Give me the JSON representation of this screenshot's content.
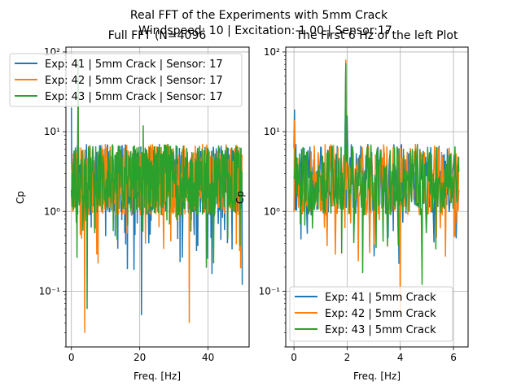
{
  "figure": {
    "suptitle_line1": "Real FFT of the Experiments with 5mm Crack",
    "suptitle_line2": "Windspeed: 10 | Excitation: 1.00 | Sensor:17"
  },
  "chart_data": [
    {
      "type": "line",
      "title": "Full FFT (N=4096",
      "xlabel": "Freq. [Hz]",
      "ylabel": "Cp",
      "xlim": [
        -1.6,
        52
      ],
      "ylim": [
        0.02,
        115
      ],
      "yscale": "log",
      "grid": true,
      "xticks": [
        0,
        20,
        40
      ],
      "xtick_labels": [
        "0",
        "20",
        "40"
      ],
      "yticks": [
        0.1,
        1,
        10,
        100
      ],
      "ytick_labels": [
        "10⁻¹",
        "10⁰",
        "10¹",
        "10²"
      ],
      "legend_loc": "upper-left",
      "x_range": [
        0,
        50
      ],
      "series": [
        {
          "name": "Exp: 41 | 5mm Crack | Sensor: 17",
          "color": "#1f77b4",
          "peaks": [
            {
              "x": 0,
              "y": 20
            },
            {
              "x": 1.95,
              "y": 45
            }
          ],
          "dips": [
            {
              "x": 20.5,
              "y": 0.05
            },
            {
              "x": 50,
              "y": 0.12
            }
          ]
        },
        {
          "name": "Exp: 42 | 5mm Crack | Sensor: 17",
          "color": "#ff7f0e",
          "peaks": [
            {
              "x": 1.95,
              "y": 35
            }
          ],
          "dips": [
            {
              "x": 3.9,
              "y": 0.03
            },
            {
              "x": 34.5,
              "y": 0.04
            }
          ]
        },
        {
          "name": "Exp: 43 | 5mm Crack | Sensor: 17",
          "color": "#2ca02c",
          "peaks": [
            {
              "x": 1.95,
              "y": 80
            },
            {
              "x": 21,
              "y": 12
            }
          ],
          "dips": [
            {
              "x": 4.6,
              "y": 0.06
            }
          ]
        }
      ]
    },
    {
      "type": "line",
      "title": "The First 6 Hz of the left Plot",
      "xlabel": "Freq. [Hz]",
      "ylabel": "Cp",
      "xlim": [
        -0.31,
        6.55
      ],
      "ylim": [
        0.02,
        115
      ],
      "yscale": "log",
      "grid": true,
      "xticks": [
        0,
        2,
        4,
        6
      ],
      "xtick_labels": [
        "0",
        "2",
        "4",
        "6"
      ],
      "yticks": [
        0.1,
        1,
        10,
        100
      ],
      "ytick_labels": [
        "10⁻¹",
        "10⁰",
        "10¹",
        "10²"
      ],
      "legend_loc": "lower-right",
      "x_range": [
        0,
        6.2
      ],
      "series": [
        {
          "name": "Exp: 41 | 5mm Crack",
          "color": "#1f77b4",
          "peaks": [
            {
              "x": 0.02,
              "y": 19
            },
            {
              "x": 1.95,
              "y": 75
            },
            {
              "x": 2.0,
              "y": 16
            }
          ],
          "dips": [
            {
              "x": 3.95,
              "y": 0.22
            }
          ]
        },
        {
          "name": "Exp: 42 | 5mm Crack",
          "color": "#ff7f0e",
          "peaks": [
            {
              "x": 0.02,
              "y": 14
            },
            {
              "x": 1.95,
              "y": 80
            }
          ],
          "dips": [
            {
              "x": 2.85,
              "y": 0.3
            },
            {
              "x": 4.0,
              "y": 0.05
            }
          ]
        },
        {
          "name": "Exp: 43 | 5mm Crack",
          "color": "#2ca02c",
          "peaks": [
            {
              "x": 1.95,
              "y": 72
            }
          ],
          "dips": [
            {
              "x": 4.82,
              "y": 0.12
            }
          ]
        }
      ]
    }
  ]
}
